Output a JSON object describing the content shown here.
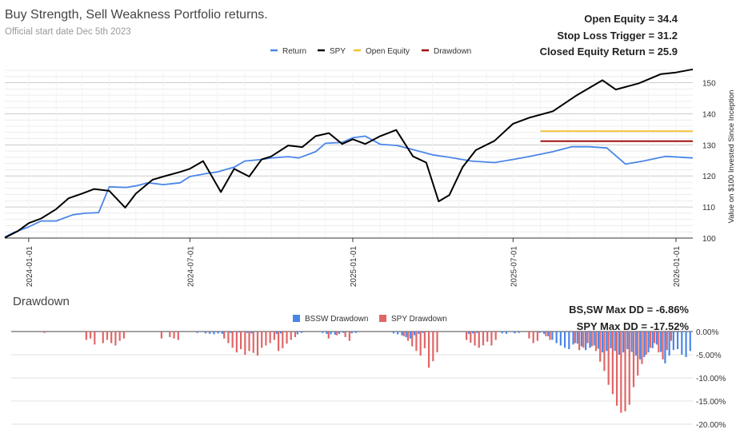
{
  "header": {
    "title": "Buy Strength, Sell Weakness Portfolio returns.",
    "subtitle": "Official start date Dec 5th 2023"
  },
  "stats": [
    {
      "label": "Open Equity =",
      "value": "34.4"
    },
    {
      "label": "Stop Loss Trigger =",
      "value": "31.2"
    },
    {
      "label": "Closed Equity Return =",
      "value": "25.9"
    }
  ],
  "drawdown_header": {
    "title": "Drawdown",
    "stats": [
      {
        "label": "BS,SW Max DD =",
        "value": "-6.86%"
      },
      {
        "label": "SPY Max DD =",
        "value": "-17.52%"
      }
    ]
  },
  "chart_data": [
    {
      "type": "line",
      "ylabel": "Value on $100 Invested Since Inception",
      "y_tick_labels": [
        "100",
        "110",
        "120",
        "130",
        "140",
        "150"
      ],
      "ylim": [
        100,
        154
      ],
      "xlim": [
        "2023-12-05",
        "2026-01-20"
      ],
      "x_tick_labels": [
        "2024-01-01",
        "2024-07-01",
        "2025-01-01",
        "2025-07-01",
        "2026-01-01"
      ],
      "grid": true,
      "legend_position": "top",
      "series": [
        {
          "name": "Return",
          "color": "#4a86e8",
          "x": [
            "2023-12-05",
            "2023-12-15",
            "2024-01-01",
            "2024-01-15",
            "2024-02-01",
            "2024-02-20",
            "2024-03-05",
            "2024-03-20",
            "2024-04-01",
            "2024-04-20",
            "2024-05-01",
            "2024-05-15",
            "2024-06-01",
            "2024-06-20",
            "2024-07-01",
            "2024-07-20",
            "2024-08-01",
            "2024-08-20",
            "2024-09-01",
            "2024-09-20",
            "2024-10-01",
            "2024-10-20",
            "2024-11-01",
            "2024-11-20",
            "2024-12-01",
            "2024-12-20",
            "2025-01-01",
            "2025-01-15",
            "2025-02-01",
            "2025-02-20",
            "2025-03-10",
            "2025-04-01",
            "2025-04-20",
            "2025-05-15",
            "2025-06-10",
            "2025-07-01",
            "2025-07-20",
            "2025-08-15",
            "2025-09-05",
            "2025-09-25",
            "2025-10-15",
            "2025-11-05",
            "2025-11-25",
            "2025-12-20",
            "2026-01-20"
          ],
          "values": [
            100.3,
            101.8,
            103.6,
            105.5,
            105.5,
            107.5,
            108.0,
            108.2,
            116.5,
            116.3,
            116.8,
            117.8,
            117.2,
            117.8,
            119.8,
            120.8,
            121.3,
            122.8,
            124.8,
            125.3,
            125.8,
            126.2,
            125.8,
            127.8,
            130.5,
            130.8,
            132.3,
            132.8,
            130.2,
            129.8,
            128.5,
            126.8,
            126.0,
            124.8,
            124.3,
            125.3,
            126.3,
            127.8,
            129.4,
            129.4,
            129.0,
            123.8,
            124.8,
            126.3,
            125.8
          ]
        },
        {
          "name": "SPY",
          "color": "#000000",
          "x": [
            "2023-12-05",
            "2023-12-20",
            "2024-01-01",
            "2024-01-15",
            "2024-02-01",
            "2024-02-15",
            "2024-03-01",
            "2024-03-15",
            "2024-04-01",
            "2024-04-19",
            "2024-05-01",
            "2024-05-20",
            "2024-06-01",
            "2024-06-20",
            "2024-07-01",
            "2024-07-16",
            "2024-08-05",
            "2024-08-20",
            "2024-09-06",
            "2024-09-20",
            "2024-10-01",
            "2024-10-20",
            "2024-11-05",
            "2024-11-20",
            "2024-12-05",
            "2024-12-20",
            "2025-01-01",
            "2025-01-15",
            "2025-02-01",
            "2025-02-19",
            "2025-03-10",
            "2025-03-25",
            "2025-04-08",
            "2025-04-20",
            "2025-05-05",
            "2025-05-20",
            "2025-06-10",
            "2025-07-01",
            "2025-07-20",
            "2025-08-15",
            "2025-09-10",
            "2025-10-10",
            "2025-10-25",
            "2025-11-20",
            "2025-12-15",
            "2026-01-01",
            "2026-01-20"
          ],
          "values": [
            100.1,
            102.3,
            104.8,
            106.3,
            109.3,
            112.8,
            114.3,
            115.8,
            115.2,
            109.8,
            114.3,
            118.8,
            119.8,
            121.3,
            122.3,
            124.8,
            114.8,
            122.3,
            119.8,
            125.3,
            126.3,
            129.8,
            129.3,
            132.8,
            133.8,
            130.3,
            131.8,
            130.3,
            132.8,
            134.8,
            126.3,
            124.3,
            111.8,
            113.8,
            122.8,
            128.3,
            131.3,
            136.8,
            138.8,
            140.8,
            145.8,
            150.8,
            147.8,
            149.8,
            152.8,
            153.3,
            154.3
          ]
        },
        {
          "name": "Open Equity",
          "color": "#f1c232",
          "x": [
            "2025-08-01",
            "2026-01-20"
          ],
          "values": [
            134.4,
            134.4
          ]
        },
        {
          "name": "Drawdown",
          "color": "#990000",
          "x": [
            "2025-08-01",
            "2026-01-20"
          ],
          "values": [
            131.2,
            131.2
          ]
        }
      ]
    },
    {
      "type": "bar",
      "title": "Drawdown",
      "ylim": [
        -20,
        0
      ],
      "y_tick_labels": [
        "0.00%",
        "-5.00%",
        "-10.00%",
        "-15.00%",
        "-20.00%"
      ],
      "legend_position": "top",
      "series": [
        {
          "name": "BSSW Drawdown",
          "color": "#4a86e8",
          "values": [
            0,
            0,
            0,
            0,
            0,
            0,
            0,
            0,
            0,
            0,
            0,
            0,
            0,
            0,
            0,
            0,
            0,
            0,
            0,
            0,
            0,
            0,
            0,
            0,
            0,
            0,
            0,
            0,
            0,
            0,
            0,
            0,
            0,
            0,
            0,
            0,
            0,
            0,
            0,
            0,
            0,
            0,
            0,
            -0.3,
            0,
            -0.4,
            -0.5,
            -0.6,
            -0.4,
            -0.5,
            0,
            -0.3,
            0,
            -0.2,
            0,
            -0.3,
            -0.4,
            0,
            0,
            0,
            0,
            0,
            -0.5,
            -0.4,
            0,
            0,
            0,
            -0.6,
            -0.3,
            0,
            0,
            0,
            0,
            -0.3,
            -0.5,
            -0.6,
            -0.7,
            -0.5,
            -0.3,
            0,
            -0.4,
            -0.3,
            0,
            0,
            0,
            0,
            0,
            0,
            0,
            0,
            -0.4,
            -0.6,
            -0.8,
            -1.2,
            -1.5,
            -0.8,
            -0.5,
            -0.3,
            0,
            0,
            0,
            0,
            0,
            0,
            0,
            0,
            0,
            0,
            -0.5,
            -0.4,
            -0.3,
            0,
            0,
            0,
            0,
            0,
            -0.4,
            -0.5,
            0,
            -0.4,
            -0.3,
            0,
            0,
            0,
            0,
            -0.3,
            -0.5,
            -1.0,
            -1.8,
            -2.5,
            -3.0,
            -3.5,
            -3.8,
            -2.8,
            -2.6,
            -3.2,
            -4.0,
            -3.5,
            -3.0,
            -3.7,
            -4.5,
            -4.2,
            -3.6,
            -4.2,
            -5.0,
            -4.5,
            -3.8,
            -4.4,
            -5.2,
            -6.0,
            -5.5,
            -4.5,
            -3.6,
            -2.8,
            -4.4,
            -6.86,
            -5.2,
            -4.0,
            -3.8,
            -5.0,
            -5.5,
            -4.2
          ]
        },
        {
          "name": "SPY Drawdown",
          "color": "#e06666",
          "values": [
            0,
            0,
            0,
            0,
            0,
            0,
            0,
            -0.3,
            0,
            0,
            0,
            0,
            0,
            0,
            0,
            0,
            0,
            -1.8,
            -1.5,
            -2.8,
            0,
            -2.5,
            -1.8,
            -2.5,
            -3.0,
            -2.0,
            -1.5,
            0,
            0,
            0,
            0,
            0,
            0,
            0,
            0,
            -1.5,
            0,
            -1.2,
            -1.5,
            -1.8,
            0,
            0,
            0,
            0,
            0,
            0,
            0,
            0,
            0,
            0,
            -1.5,
            -2.5,
            -3.5,
            -4.5,
            -3.8,
            -5.0,
            -4.2,
            -4.6,
            -5.2,
            -3.5,
            -3.0,
            -2.5,
            -1.8,
            -4.2,
            -3.6,
            -2.6,
            -1.8,
            -1.2,
            0,
            0,
            0,
            0,
            0,
            0,
            0,
            -1.5,
            0,
            -0.8,
            0,
            -1.2,
            -2.0,
            0,
            0,
            0,
            0,
            0,
            0,
            0,
            0,
            0,
            0,
            0,
            0,
            -1.0,
            -2.0,
            -3.2,
            -4.2,
            -5.2,
            -3.6,
            -7.8,
            -6.4,
            -4.5,
            0,
            0,
            0,
            0,
            0,
            0,
            -1.8,
            -2.4,
            -3.0,
            -3.5,
            -3.0,
            -2.2,
            -3.0,
            -1.8,
            0,
            0,
            0,
            0,
            0,
            0,
            0,
            -1.5,
            -2.5,
            -2.0,
            0,
            -1.0,
            -1.8,
            0,
            0,
            0,
            0,
            0,
            -2.5,
            -4.0,
            -3.5,
            -2.5,
            -3.2,
            -4.2,
            -6.5,
            -8.5,
            -11.5,
            -13.5,
            -16.0,
            -17.52,
            -17.2,
            -15.8,
            -12.0,
            -9.5,
            -7.0,
            -5.0,
            -3.5,
            -2.5,
            -4.5,
            -6.0,
            -4.0,
            -2.0,
            0,
            0,
            0,
            0,
            0,
            0,
            0,
            0,
            0,
            0,
            0,
            0,
            0,
            0
          ]
        }
      ]
    }
  ]
}
